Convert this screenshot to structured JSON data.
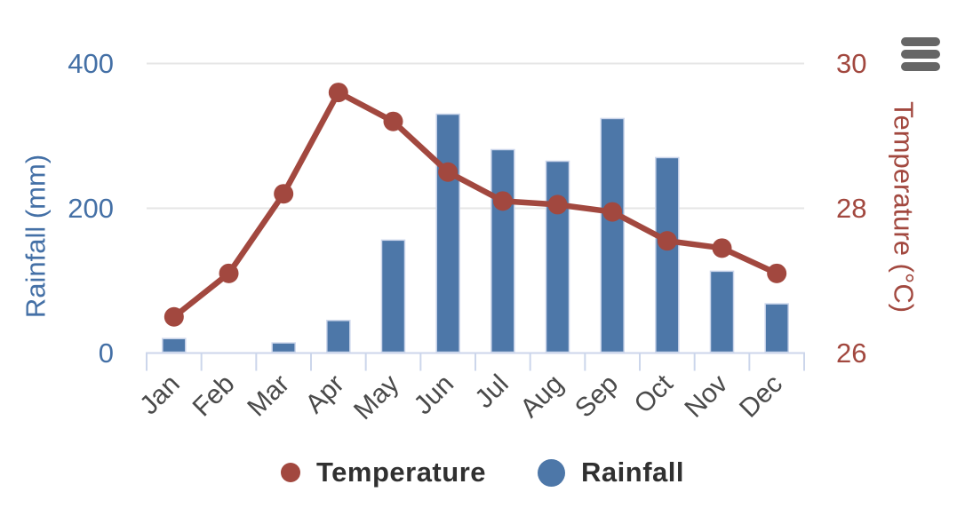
{
  "chart_data": {
    "type": "combo-column-line",
    "categories": [
      "Jan",
      "Feb",
      "Mar",
      "Apr",
      "May",
      "Jun",
      "Jul",
      "Aug",
      "Sep",
      "Oct",
      "Nov",
      "Dec"
    ],
    "series": [
      {
        "name": "Temperature",
        "type": "line",
        "y_axis": "right",
        "color": "#a2483f",
        "marker": "circle",
        "values": [
          26.5,
          27.1,
          28.2,
          29.6,
          29.2,
          28.5,
          28.1,
          28.05,
          27.95,
          27.55,
          27.45,
          27.1
        ]
      },
      {
        "name": "Rainfall",
        "type": "column",
        "y_axis": "left",
        "color": "#4d77a8",
        "values": [
          20,
          0,
          14,
          45,
          156,
          330,
          281,
          265,
          324,
          270,
          113,
          68
        ]
      }
    ],
    "axes": {
      "y_left": {
        "title": "Rainfall (mm)",
        "min": 0,
        "max": 400,
        "ticks": [
          0,
          200,
          400
        ],
        "text_color": "#4470a6"
      },
      "y_right": {
        "title": "Temperature (°C)",
        "min": 26,
        "max": 30,
        "ticks": [
          26,
          28,
          30
        ],
        "text_color": "#a2483f"
      },
      "x": {
        "label_color": "#4a4a4a",
        "label_rotation": -45
      }
    },
    "legend": {
      "position": "bottom",
      "items": [
        "Temperature",
        "Rainfall"
      ]
    },
    "grid": {
      "horizontal_major_only": true,
      "gridline_color": "#e6e6e6",
      "axis_line_color": "#ccd6eb"
    }
  },
  "export_menu": {
    "name": "chart context menu",
    "icon": "hamburger-icon",
    "color": "#666666"
  }
}
